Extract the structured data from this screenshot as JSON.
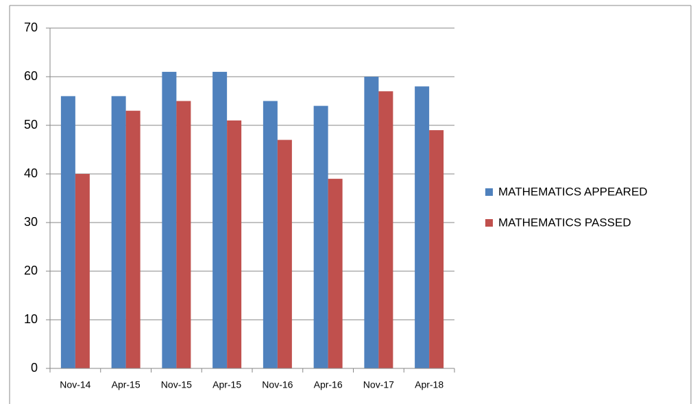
{
  "chart_data": {
    "type": "bar",
    "categories": [
      "Nov-14",
      "Apr-15",
      "Nov-15",
      "Apr-15",
      "Nov-16",
      "Apr-16",
      "Nov-17",
      "Apr-18"
    ],
    "series": [
      {
        "name": "MATHEMATICS APPEARED",
        "color": "#4f81bd",
        "values": [
          56,
          56,
          61,
          61,
          55,
          54,
          60,
          58
        ]
      },
      {
        "name": "MATHEMATICS PASSED",
        "color": "#c0504d",
        "values": [
          40,
          53,
          55,
          51,
          47,
          39,
          57,
          49
        ]
      }
    ],
    "ylim": [
      0,
      70
    ],
    "yticks": [
      0,
      10,
      20,
      30,
      40,
      50,
      60,
      70
    ],
    "grid": true,
    "legend": "right"
  }
}
